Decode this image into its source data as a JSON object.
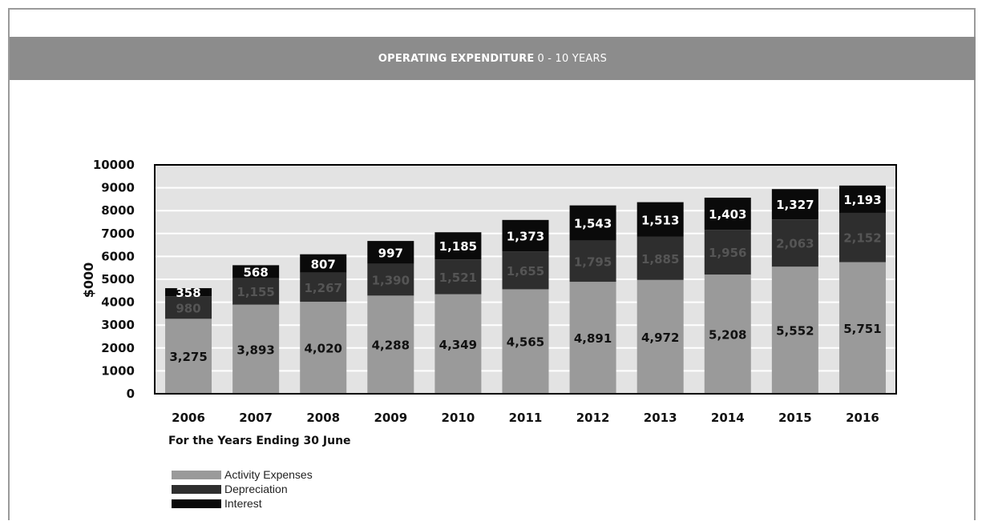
{
  "header": {
    "title_strong": "OPERATING EXPENDITURE",
    "title_light": "0 - 10 YEARS"
  },
  "chart_data": {
    "type": "bar",
    "stacked": true,
    "categories": [
      "2006",
      "2007",
      "2008",
      "2009",
      "2010",
      "2011",
      "2012",
      "2013",
      "2014",
      "2015",
      "2016"
    ],
    "series": [
      {
        "name": "Activity Expenses",
        "color": "#9a9a9a",
        "values": [
          3275,
          3893,
          4020,
          4288,
          4349,
          4565,
          4891,
          4972,
          5208,
          5552,
          5751
        ],
        "labels": [
          "3,275",
          "3,893",
          "4,020",
          "4,288",
          "4,349",
          "4,565",
          "4,891",
          "4,972",
          "5,208",
          "5,552",
          "5,751"
        ]
      },
      {
        "name": "Depreciation",
        "color": "#2e2e2e",
        "values": [
          980,
          1155,
          1267,
          1390,
          1521,
          1655,
          1795,
          1885,
          1956,
          2063,
          2152
        ],
        "labels": [
          "980",
          "1,155",
          "1,267",
          "1,390",
          "1,521",
          "1,655",
          "1,795",
          "1,885",
          "1,956",
          "2,063",
          "2,152"
        ]
      },
      {
        "name": "Interest",
        "color": "#0a0a0a",
        "values": [
          358,
          568,
          807,
          997,
          1185,
          1373,
          1543,
          1513,
          1403,
          1327,
          1193
        ],
        "labels": [
          "358",
          "568",
          "807",
          "997",
          "1,185",
          "1,373",
          "1,543",
          "1,513",
          "1,403",
          "1,327",
          "1,193"
        ]
      }
    ],
    "ylabel": "$000",
    "xlabel": "For the Years Ending 30 June",
    "ylim": [
      0,
      10000
    ],
    "yticks": [
      0,
      1000,
      2000,
      3000,
      4000,
      5000,
      6000,
      7000,
      8000,
      9000,
      10000
    ],
    "grid": true,
    "legend_position": "bottom-left"
  },
  "legend": [
    {
      "label": "Activity Expenses",
      "color": "#9a9a9a"
    },
    {
      "label": "Depreciation",
      "color": "#2e2e2e"
    },
    {
      "label": "Interest",
      "color": "#0a0a0a"
    }
  ]
}
